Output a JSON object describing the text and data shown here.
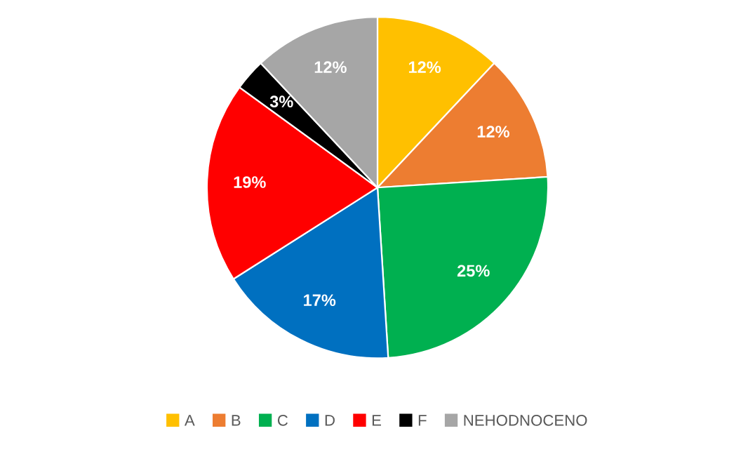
{
  "chart_data": {
    "type": "pie",
    "categories": [
      "A",
      "B",
      "C",
      "D",
      "E",
      "F",
      "NEHODNOCENO"
    ],
    "values": [
      12,
      12,
      25,
      17,
      19,
      3,
      12
    ],
    "colors": [
      "#ffc000",
      "#ed7d31",
      "#00b050",
      "#0070c0",
      "#ff0000",
      "#000000",
      "#a6a6a6"
    ],
    "value_labels": [
      "12%",
      "12%",
      "25%",
      "17%",
      "19%",
      "3%",
      "12%"
    ],
    "legend": "bottom"
  }
}
